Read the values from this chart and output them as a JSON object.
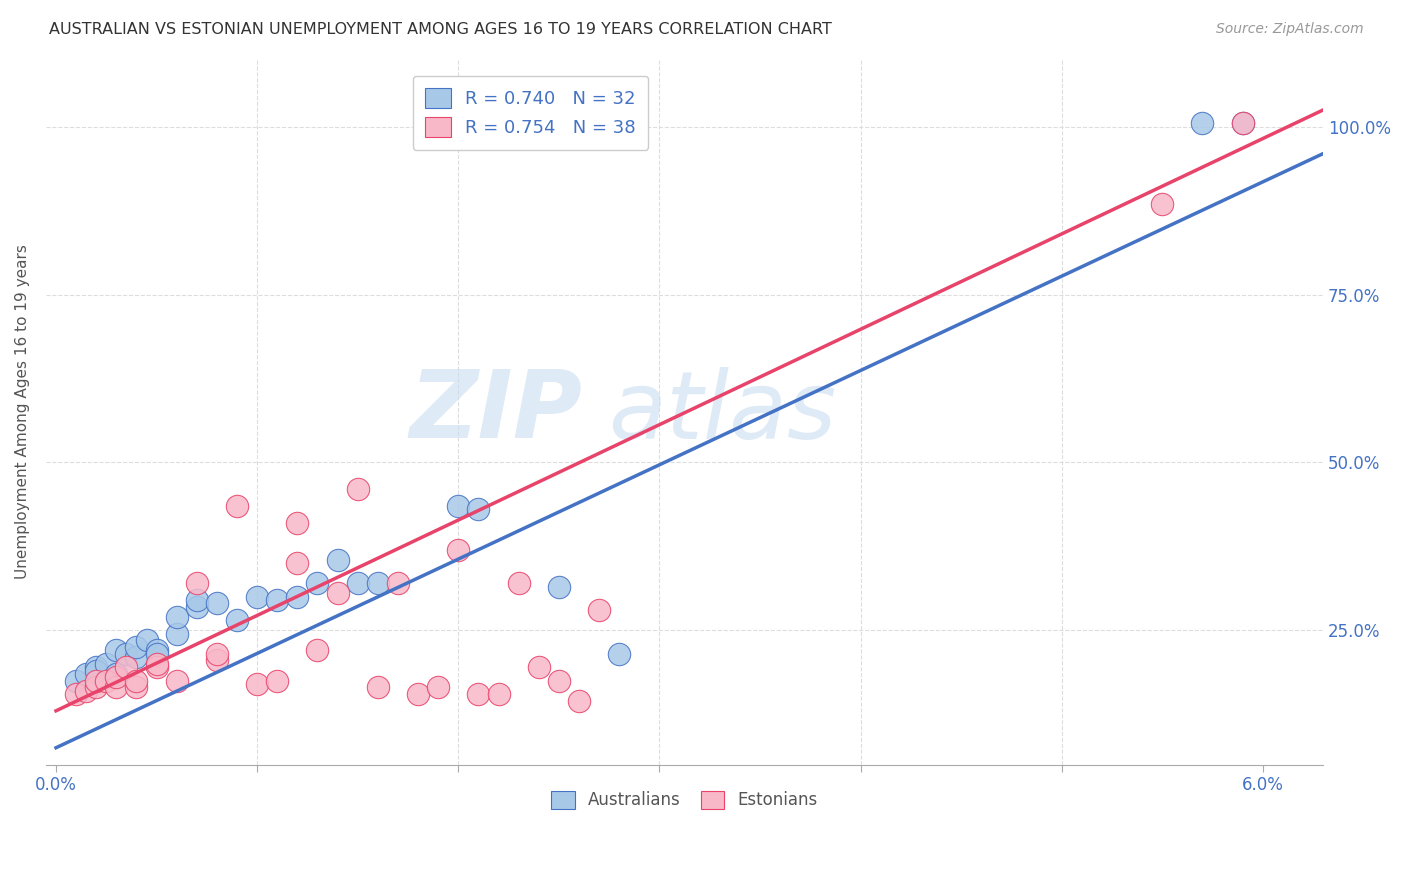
{
  "title": "AUSTRALIAN VS ESTONIAN UNEMPLOYMENT AMONG AGES 16 TO 19 YEARS CORRELATION CHART",
  "source": "Source: ZipAtlas.com",
  "ylabel": "Unemployment Among Ages 16 to 19 years",
  "ylim": [
    0.05,
    1.1
  ],
  "xlim": [
    -0.0005,
    0.063
  ],
  "legend_label_blue": "R = 0.740   N = 32",
  "legend_label_pink": "R = 0.754   N = 38",
  "legend_australians": "Australians",
  "legend_estonians": "Estonians",
  "blue_color": "#a8c8e8",
  "pink_color": "#f8b8c8",
  "blue_line_color": "#4472c4",
  "pink_line_color": "#e8436a",
  "watermark_zip": "ZIP",
  "watermark_atlas": "atlas",
  "aus_scatter_x": [
    0.001,
    0.0015,
    0.002,
    0.002,
    0.0025,
    0.003,
    0.003,
    0.0035,
    0.004,
    0.004,
    0.0045,
    0.005,
    0.005,
    0.006,
    0.006,
    0.007,
    0.007,
    0.008,
    0.009,
    0.01,
    0.011,
    0.012,
    0.013,
    0.014,
    0.015,
    0.016,
    0.02,
    0.021,
    0.025,
    0.028,
    0.057,
    0.059
  ],
  "aus_scatter_y": [
    0.175,
    0.185,
    0.195,
    0.19,
    0.2,
    0.185,
    0.22,
    0.215,
    0.21,
    0.225,
    0.235,
    0.22,
    0.215,
    0.245,
    0.27,
    0.285,
    0.295,
    0.29,
    0.265,
    0.3,
    0.295,
    0.3,
    0.32,
    0.355,
    0.32,
    0.32,
    0.435,
    0.43,
    0.315,
    0.215,
    1.005,
    1.005
  ],
  "est_scatter_x": [
    0.001,
    0.0015,
    0.002,
    0.002,
    0.0025,
    0.003,
    0.003,
    0.0035,
    0.004,
    0.004,
    0.005,
    0.005,
    0.006,
    0.007,
    0.008,
    0.008,
    0.009,
    0.01,
    0.011,
    0.012,
    0.012,
    0.013,
    0.014,
    0.015,
    0.016,
    0.017,
    0.018,
    0.019,
    0.02,
    0.021,
    0.022,
    0.023,
    0.024,
    0.025,
    0.026,
    0.027,
    0.055,
    0.059
  ],
  "est_scatter_y": [
    0.155,
    0.16,
    0.165,
    0.175,
    0.175,
    0.165,
    0.18,
    0.195,
    0.165,
    0.175,
    0.195,
    0.2,
    0.175,
    0.32,
    0.205,
    0.215,
    0.435,
    0.17,
    0.175,
    0.35,
    0.41,
    0.22,
    0.305,
    0.46,
    0.165,
    0.32,
    0.155,
    0.165,
    0.37,
    0.155,
    0.155,
    0.32,
    0.195,
    0.175,
    0.145,
    0.28,
    0.885,
    1.005
  ],
  "aus_line_x": [
    0.0,
    0.063
  ],
  "aus_line_y": [
    0.075,
    0.96
  ],
  "est_line_x": [
    0.0,
    0.063
  ],
  "est_line_y": [
    0.13,
    1.025
  ],
  "ytick_positions": [
    0.25,
    0.5,
    0.75,
    1.0
  ],
  "ytick_labels": [
    "25.0%",
    "50.0%",
    "75.0%",
    "100.0%"
  ],
  "xtick_left_label": "0.0%",
  "xtick_right_label": "6.0%",
  "grid_color": "#dddddd",
  "tick_color": "#4472c4"
}
